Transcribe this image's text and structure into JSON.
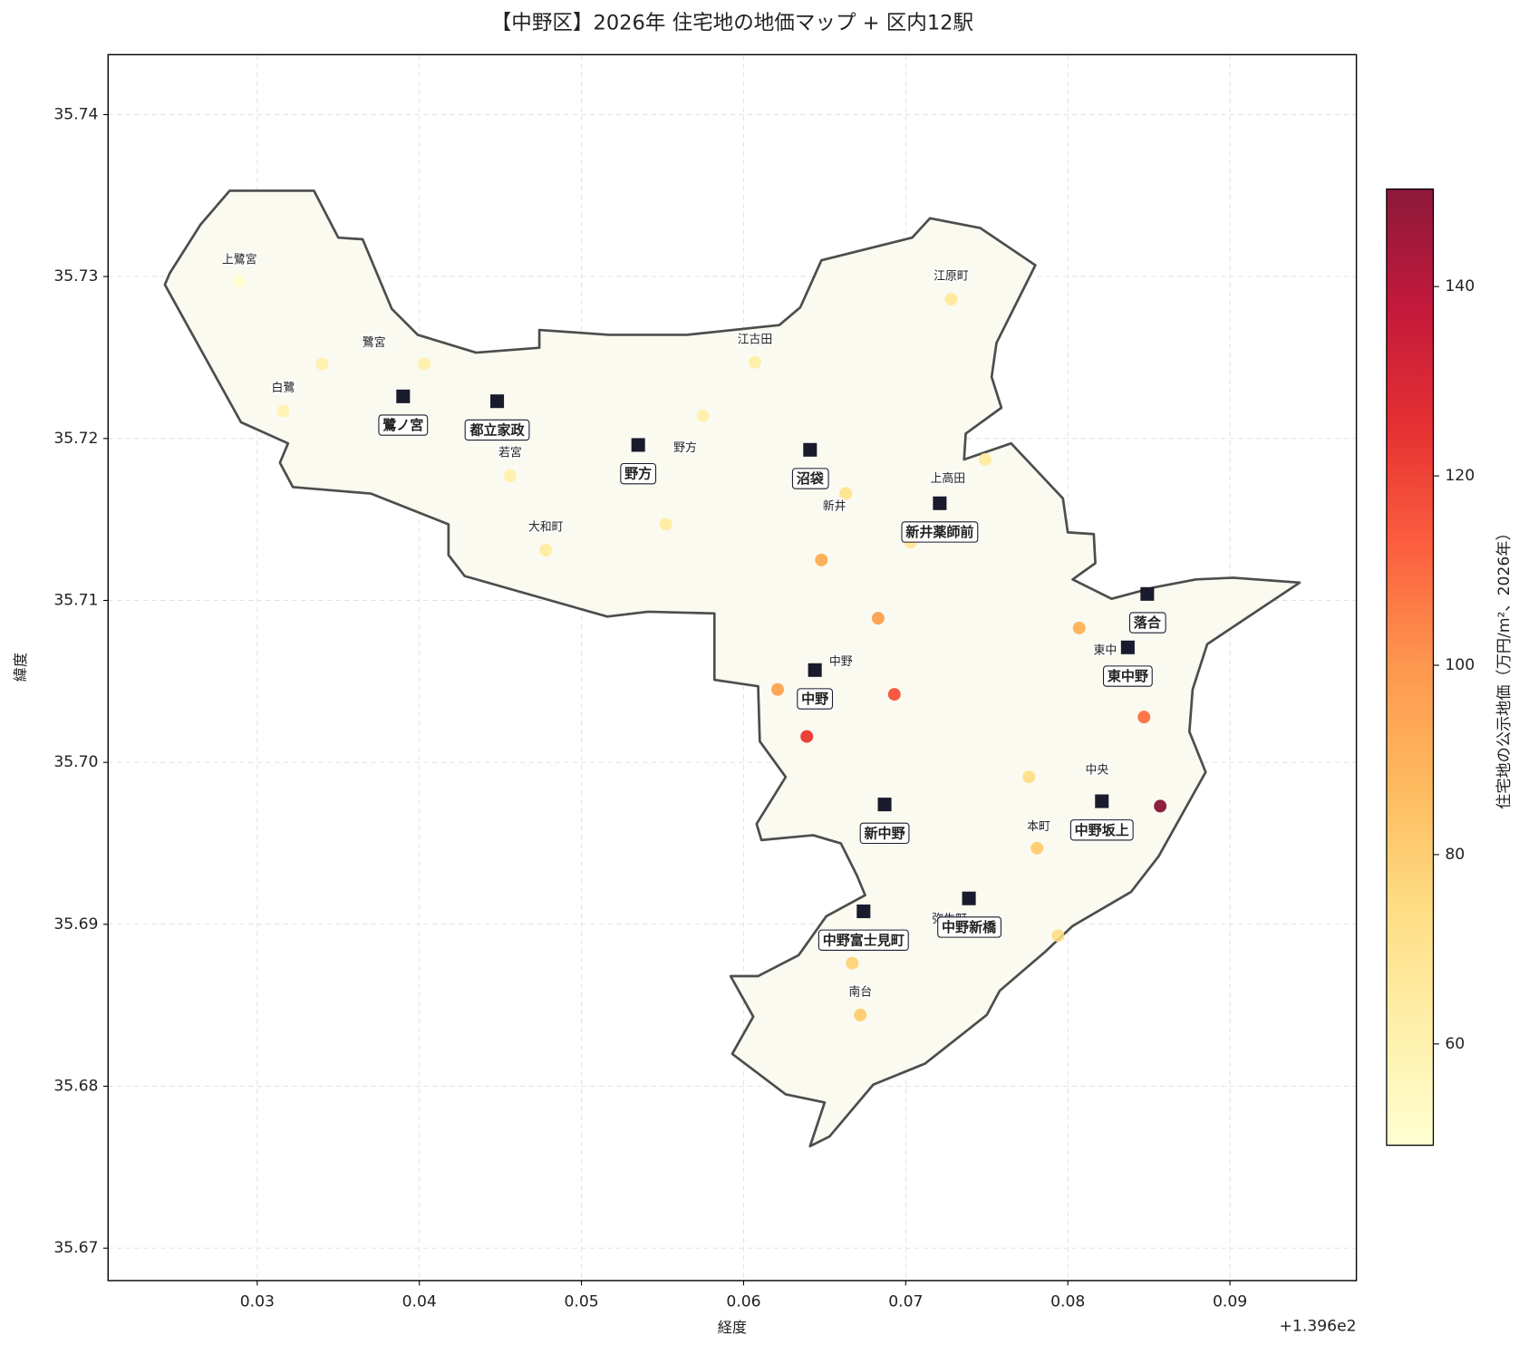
{
  "chart_data": {
    "type": "scatter",
    "title": "【中野区】2026年 住宅地の地価マップ + 区内12駅",
    "xlabel": "経度",
    "ylabel": "緯度",
    "x_offset_label": "+1.396e2",
    "xlim": [
      0.0208,
      0.0978
    ],
    "ylim": [
      35.668,
      35.7437
    ],
    "xticks": [
      0.03,
      0.04,
      0.05,
      0.06,
      0.07,
      0.08,
      0.09
    ],
    "yticks": [
      35.67,
      35.68,
      35.69,
      {
        "value": 35.7,
        "label": "35.70"
      },
      35.71,
      35.72,
      35.73,
      35.74
    ],
    "grid": true,
    "boundary": {
      "color": "#4d4d4d",
      "fill": "#fafaf0",
      "x": [
        0.0243,
        0.0246,
        0.0265,
        0.0283,
        0.0335,
        0.035,
        0.0365,
        0.0383,
        0.0399,
        0.0435,
        0.0474,
        0.0474,
        0.0517,
        0.0565,
        0.0622,
        0.0635,
        0.0648,
        0.0704,
        0.0715,
        0.0746,
        0.078,
        0.0764,
        0.0756,
        0.0753,
        0.0759,
        0.0737,
        0.0736,
        0.0765,
        0.0797,
        0.08,
        0.0816,
        0.0817,
        0.0803,
        0.0827,
        0.0853,
        0.0879,
        0.0902,
        0.0943,
        0.0886,
        0.0877,
        0.0875,
        0.0885,
        0.0856,
        0.0839,
        0.0803,
        0.0786,
        0.0758,
        0.075,
        0.0712,
        0.068,
        0.0653,
        0.0641,
        0.065,
        0.0626,
        0.0593,
        0.0606,
        0.0592,
        0.0609,
        0.0634,
        0.0651,
        0.0675,
        0.067,
        0.066,
        0.0643,
        0.0611,
        0.0608,
        0.0626,
        0.061,
        0.0609,
        0.0582,
        0.0582,
        0.0541,
        0.0516,
        0.0428,
        0.0418,
        0.0418,
        0.037,
        0.0322,
        0.0314,
        0.0319,
        0.029
      ],
      "y": [
        35.7295,
        35.7302,
        35.7332,
        35.7353,
        35.7353,
        35.7324,
        35.7323,
        35.728,
        35.7264,
        35.7253,
        35.7256,
        35.7267,
        35.7264,
        35.7264,
        35.727,
        35.7281,
        35.731,
        35.7324,
        35.7336,
        35.733,
        35.7307,
        35.7275,
        35.7259,
        35.7238,
        35.7219,
        35.7203,
        35.7187,
        35.7197,
        35.7163,
        35.7142,
        35.7141,
        35.7123,
        35.7113,
        35.7101,
        35.7108,
        35.7113,
        35.7114,
        35.7111,
        35.7073,
        35.7045,
        35.7019,
        35.6994,
        35.6942,
        35.692,
        35.6899,
        35.6883,
        35.6859,
        35.6844,
        35.6814,
        35.6801,
        35.6769,
        35.6763,
        35.679,
        35.6795,
        35.682,
        35.6843,
        35.6868,
        35.6868,
        35.6881,
        35.6905,
        35.6918,
        35.693,
        35.695,
        35.6955,
        35.6952,
        35.6962,
        35.6991,
        35.7013,
        35.7047,
        35.7051,
        35.7092,
        35.7093,
        35.709,
        35.7115,
        35.7128,
        35.7147,
        35.7166,
        35.717,
        35.7185,
        35.7197,
        35.721
      ]
    },
    "points": {
      "x": [
        0.0289,
        0.0316,
        0.034,
        0.0403,
        0.0456,
        0.0478,
        0.0552,
        0.0575,
        0.0607,
        0.0728,
        0.0749,
        0.0663,
        0.0703,
        0.0648,
        0.0683,
        0.0621,
        0.0693,
        0.0639,
        0.0807,
        0.0847,
        0.0857,
        0.0776,
        0.0781,
        0.0794,
        0.0667,
        0.0672
      ],
      "y": [
        35.7297,
        35.7217,
        35.7246,
        35.7246,
        35.7177,
        35.7131,
        35.7147,
        35.7214,
        35.7247,
        35.7286,
        35.7187,
        35.7166,
        35.7136,
        35.7125,
        35.7089,
        35.7045,
        35.7042,
        35.7016,
        35.7083,
        35.7028,
        35.6973,
        35.6991,
        35.6947,
        35.6893,
        35.6876,
        35.6844
      ],
      "values": [
        50,
        58,
        60,
        61,
        61,
        64,
        64,
        60,
        62,
        66,
        65,
        70,
        68,
        92,
        96,
        95,
        115,
        122,
        90,
        108,
        150,
        72,
        80,
        72,
        78,
        80
      ]
    },
    "area_labels": {
      "texts": [
        "上鷺宮",
        "鷺宮",
        "白鷺",
        "若宮",
        "大和町",
        "江古田",
        "江原町",
        "野方",
        "新井",
        "上高田",
        "中野",
        "東中",
        "中央",
        "本町",
        "弥生町",
        "南台"
      ],
      "x": [
        0.0289,
        0.0372,
        0.0316,
        0.0456,
        0.0478,
        0.0607,
        0.0728,
        0.0564,
        0.0656,
        0.0726,
        0.066,
        0.0823,
        0.0818,
        0.0782,
        0.0727,
        0.0672
      ],
      "y": [
        35.731,
        35.7259,
        35.7231,
        35.7191,
        35.7145,
        35.7261,
        35.73,
        35.7194,
        35.7158,
        35.7175,
        35.7062,
        35.7069,
        35.6995,
        35.696,
        35.6903,
        35.6858
      ]
    },
    "stations": {
      "color": "#1a1a2e",
      "names": [
        "鷺ノ宮",
        "都立家政",
        "野方",
        "沼袋",
        "新井薬師前",
        "落合",
        "東中野",
        "中野",
        "新中野",
        "中野坂上",
        "中野富士見町",
        "中野新橋"
      ],
      "x": [
        0.039,
        0.0448,
        0.0535,
        0.0641,
        0.0721,
        0.0849,
        0.0837,
        0.0644,
        0.0687,
        0.0821,
        0.0674,
        0.0739
      ],
      "y": [
        35.7226,
        35.7223,
        35.7196,
        35.7193,
        35.716,
        35.7104,
        35.7071,
        35.7057,
        35.6974,
        35.6976,
        35.6908,
        35.6916
      ]
    },
    "colorbar": {
      "label": "住宅地の公示地価（万円/m²、2026年）",
      "colormap": "YlOrRd",
      "lim": [
        49.3,
        150.3
      ],
      "ticks": [
        60,
        80,
        100,
        120,
        140
      ]
    }
  }
}
